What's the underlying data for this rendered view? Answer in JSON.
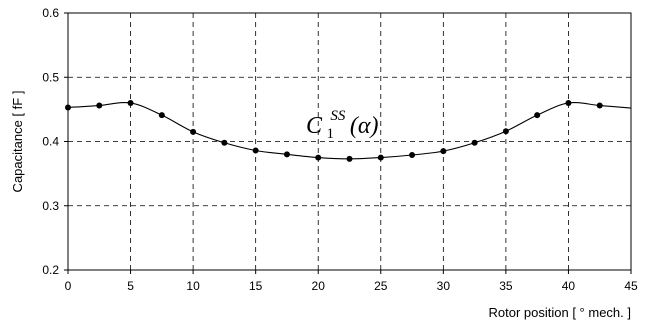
{
  "chart_data": {
    "type": "line",
    "xlabel": "Rotor position [ ° mech. ]",
    "ylabel": "Capacitance [ fF ]",
    "xlim": [
      0,
      45
    ],
    "ylim": [
      0.2,
      0.6
    ],
    "x_ticks": [
      "0",
      "5",
      "10",
      "15",
      "20",
      "25",
      "30",
      "35",
      "40",
      "45"
    ],
    "y_ticks": [
      "0.2",
      "0.3",
      "0.4",
      "0.5",
      "0.6"
    ],
    "grid": true,
    "grid_style": "dashed",
    "legend": "none",
    "line_color": "#000000",
    "marker": "filled-circle",
    "annotation": {
      "base": "C",
      "subscript": "1",
      "superscript": "SS",
      "argument": "(α)"
    },
    "series": [
      {
        "x": [
          0,
          2.5,
          5,
          7.5,
          10,
          12.5,
          15,
          17.5,
          20,
          22.5,
          25,
          27.5,
          30,
          32.5,
          35,
          37.5,
          40,
          42.5
        ],
        "y": [
          0.453,
          0.456,
          0.46,
          0.441,
          0.415,
          0.398,
          0.386,
          0.38,
          0.375,
          0.373,
          0.375,
          0.379,
          0.385,
          0.398,
          0.416,
          0.441,
          0.46,
          0.456
        ],
        "curve_x": [
          0,
          2.5,
          5,
          7.5,
          10,
          12.5,
          15,
          17.5,
          20,
          22.5,
          25,
          27.5,
          30,
          32.5,
          35,
          37.5,
          40,
          42.5,
          45
        ],
        "curve_y": [
          0.453,
          0.456,
          0.46,
          0.441,
          0.415,
          0.398,
          0.386,
          0.38,
          0.375,
          0.373,
          0.375,
          0.379,
          0.385,
          0.398,
          0.416,
          0.441,
          0.46,
          0.456,
          0.452
        ]
      }
    ]
  }
}
